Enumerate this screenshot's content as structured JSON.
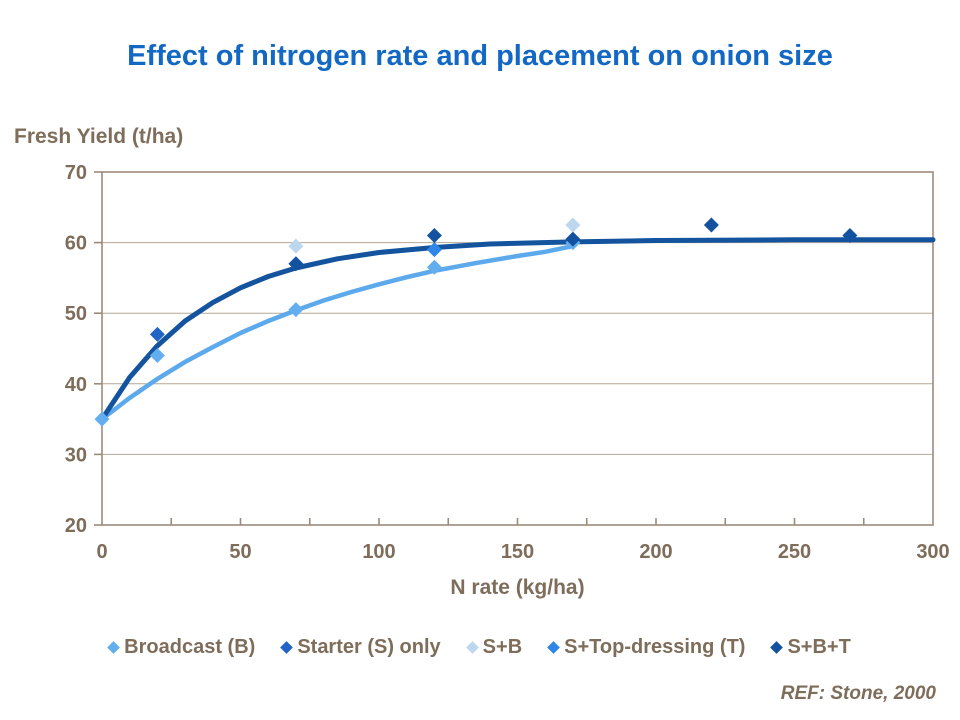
{
  "ref_note": "REF: Stone, 2000",
  "chart_data": {
    "type": "scatter",
    "title": "Effect of nitrogen rate and placement on onion size",
    "xlabel": "N rate (kg/ha)",
    "ylabel": "Fresh Yield (t/ha)",
    "xlim": [
      0,
      300
    ],
    "ylim": [
      20,
      70
    ],
    "x_ticks": [
      0,
      50,
      100,
      150,
      200,
      250,
      300
    ],
    "y_ticks": [
      20,
      30,
      40,
      50,
      60,
      70
    ],
    "x_minor_tick_step": 25,
    "grid": "horizontal",
    "legend_position": "bottom",
    "axis_color": "#9c8b79",
    "grid_color": "#b5a797",
    "series": [
      {
        "name": "Broadcast (B)",
        "color": "#63aeef",
        "points": [
          [
            0,
            35
          ],
          [
            20,
            44
          ],
          [
            70,
            50.5
          ],
          [
            120,
            56.5
          ],
          [
            170,
            60
          ]
        ]
      },
      {
        "name": "Starter (S) only",
        "color": "#2263c6",
        "points": [
          [
            20,
            47
          ]
        ]
      },
      {
        "name": "S+B",
        "color": "#bdd7ee",
        "points": [
          [
            70,
            59.5
          ],
          [
            170,
            62.5
          ]
        ]
      },
      {
        "name": "S+Top-dressing (T)",
        "color": "#2e86e8",
        "points": [
          [
            120,
            59
          ]
        ]
      },
      {
        "name": "S+B+T",
        "color": "#13529e",
        "points": [
          [
            70,
            57
          ],
          [
            120,
            61
          ],
          [
            170,
            60.5
          ],
          [
            220,
            62.5
          ],
          [
            270,
            61
          ]
        ]
      }
    ],
    "trendlines": [
      {
        "series": "Broadcast (B)",
        "color": "#5ca9ec",
        "width": 4.5,
        "points": [
          [
            0,
            35
          ],
          [
            10,
            38
          ],
          [
            20,
            40.7
          ],
          [
            30,
            43.1
          ],
          [
            40,
            45.2
          ],
          [
            50,
            47.2
          ],
          [
            60,
            48.9
          ],
          [
            70,
            50.4
          ],
          [
            80,
            51.8
          ],
          [
            90,
            53
          ],
          [
            100,
            54.1
          ],
          [
            110,
            55.1
          ],
          [
            120,
            56
          ],
          [
            135,
            57.1
          ],
          [
            150,
            58.1
          ],
          [
            160,
            58.7
          ],
          [
            170,
            59.5
          ]
        ]
      },
      {
        "series": "S+B+T",
        "color": "#14549f",
        "width": 5,
        "points": [
          [
            0,
            35
          ],
          [
            10,
            40.9
          ],
          [
            20,
            45.4
          ],
          [
            30,
            48.9
          ],
          [
            40,
            51.5
          ],
          [
            50,
            53.6
          ],
          [
            60,
            55.2
          ],
          [
            70,
            56.4
          ],
          [
            85,
            57.7
          ],
          [
            100,
            58.6
          ],
          [
            120,
            59.3
          ],
          [
            140,
            59.8
          ],
          [
            170,
            60.1
          ],
          [
            200,
            60.3
          ],
          [
            250,
            60.4
          ],
          [
            300,
            60.4
          ]
        ]
      }
    ]
  }
}
